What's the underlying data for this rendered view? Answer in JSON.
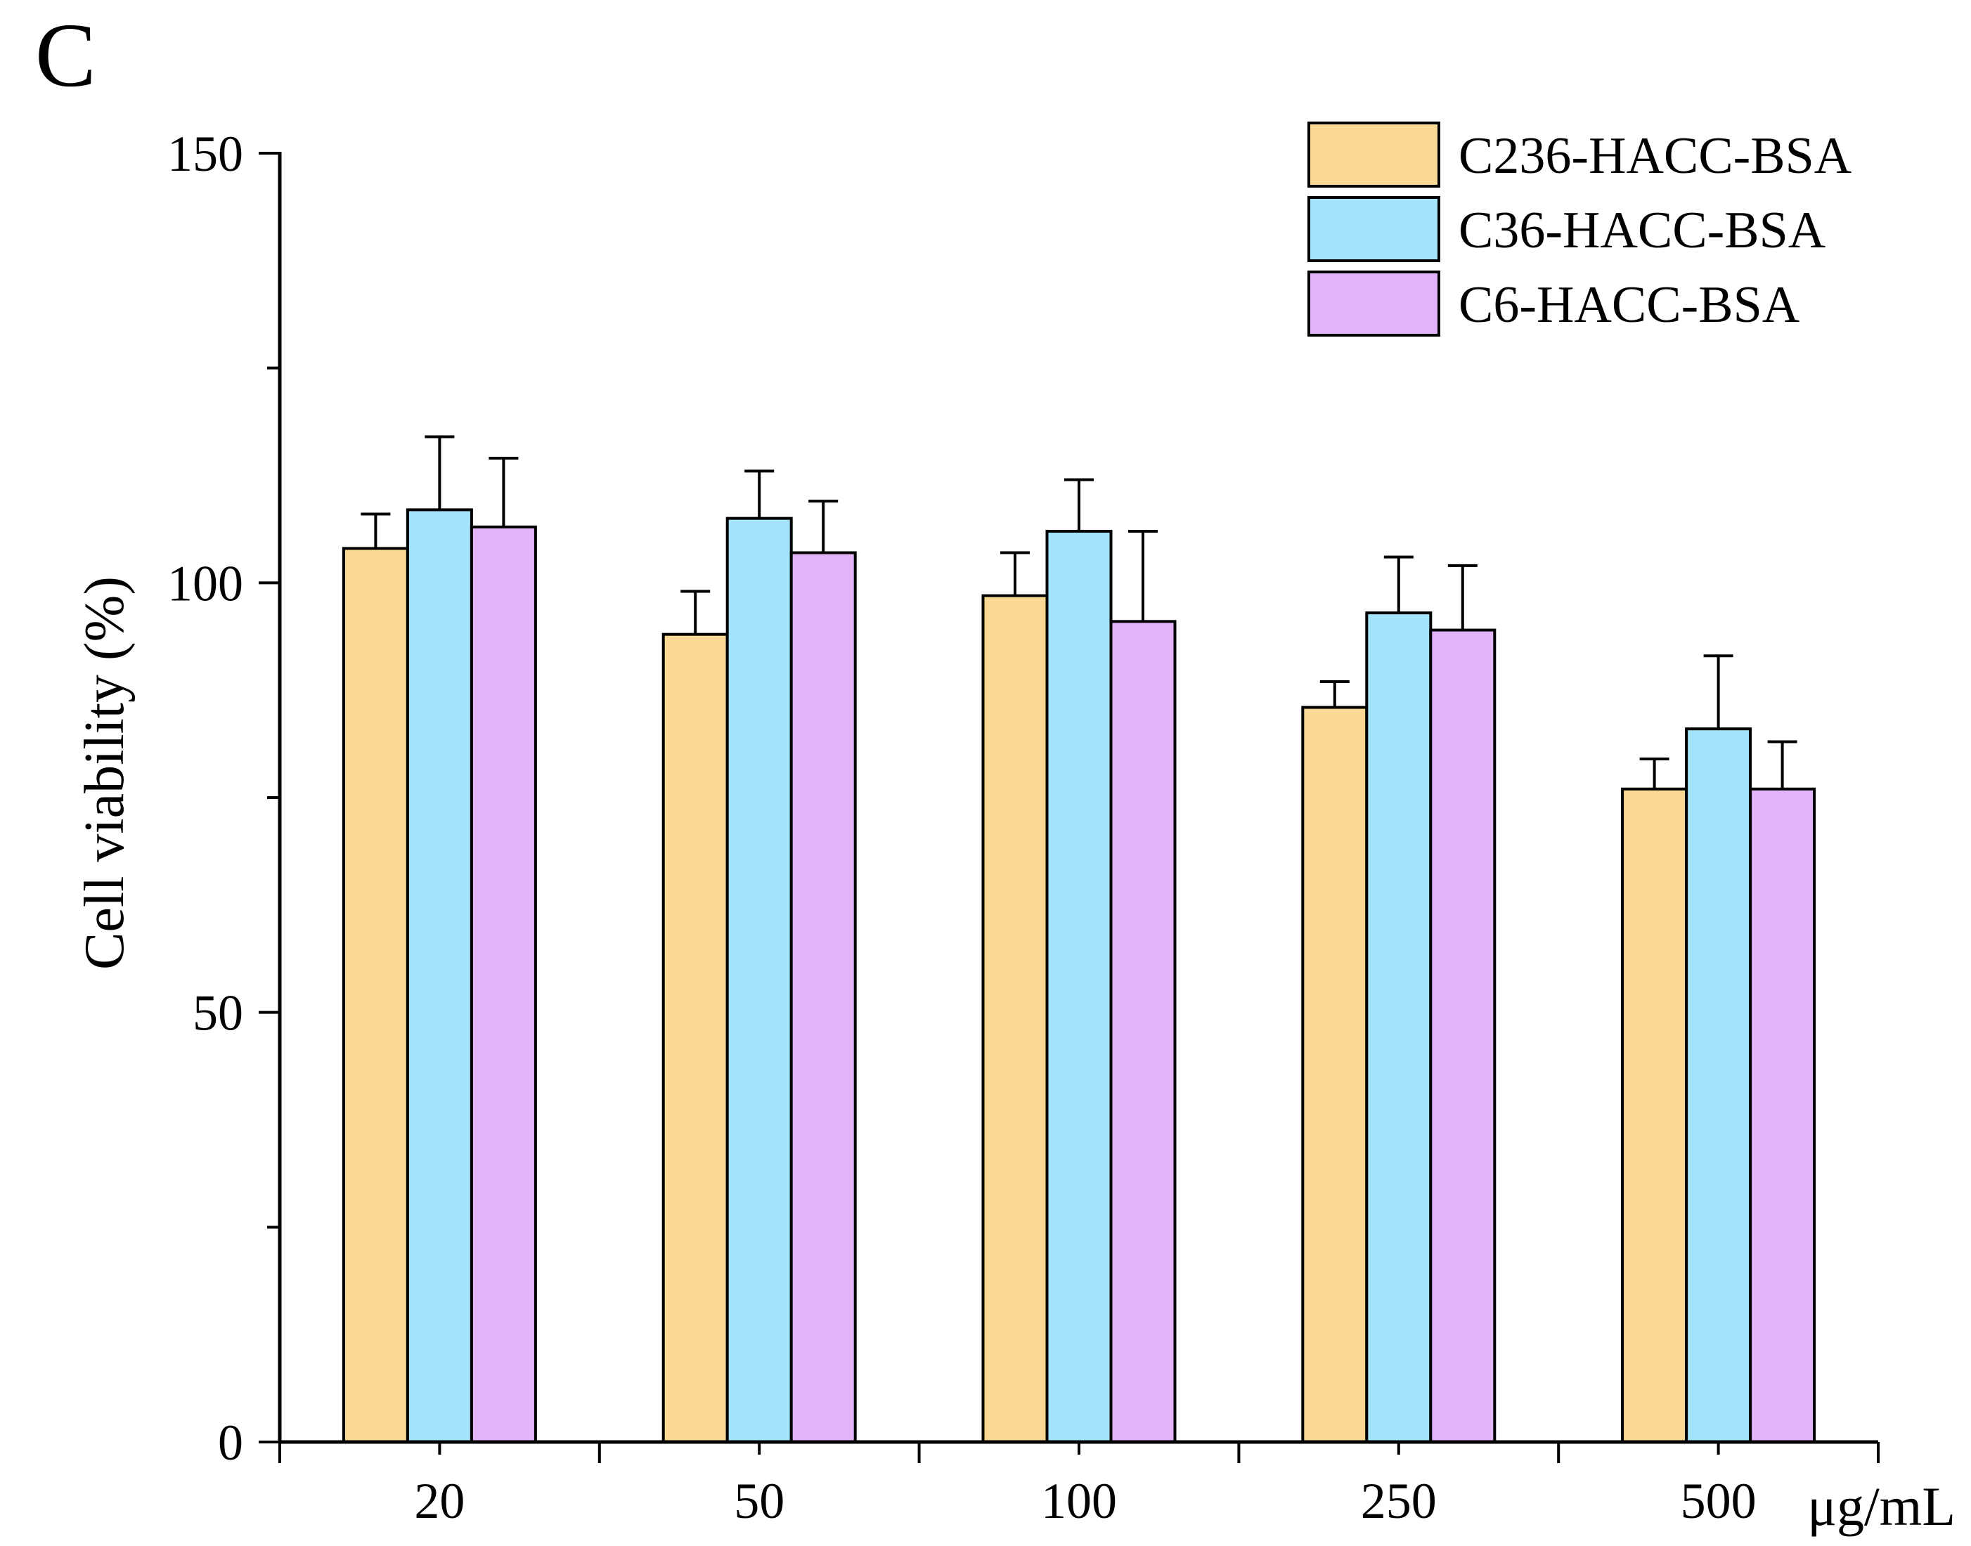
{
  "panel_label": "C",
  "chart_data": {
    "type": "bar",
    "title": "",
    "xlabel": "",
    "x_unit_label": "μg/mL",
    "ylabel": "Cell viability (%)",
    "ylim": [
      0,
      150
    ],
    "yticks": [
      0,
      50,
      100,
      150
    ],
    "categories": [
      "20",
      "50",
      "100",
      "250",
      "500"
    ],
    "series": [
      {
        "name": "C236-HACC-BSA",
        "color": "#FAD994",
        "values": [
          104.0,
          94.0,
          98.5,
          85.5,
          76.0
        ],
        "errors": [
          4.0,
          5.0,
          5.0,
          3.0,
          3.5
        ]
      },
      {
        "name": "C36-HACC-BSA",
        "color": "#A4E4FA",
        "values": [
          108.5,
          107.5,
          106.0,
          96.5,
          83.0
        ],
        "errors": [
          8.5,
          5.5,
          6.0,
          6.5,
          8.5
        ]
      },
      {
        "name": "C6-HACC-BSA",
        "color": "#E4B4FA",
        "values": [
          106.5,
          103.5,
          95.5,
          94.5,
          76.0
        ],
        "errors": [
          8.0,
          6.0,
          10.5,
          7.5,
          5.5
        ]
      }
    ],
    "legend_position": "top-right",
    "grid": false
  }
}
